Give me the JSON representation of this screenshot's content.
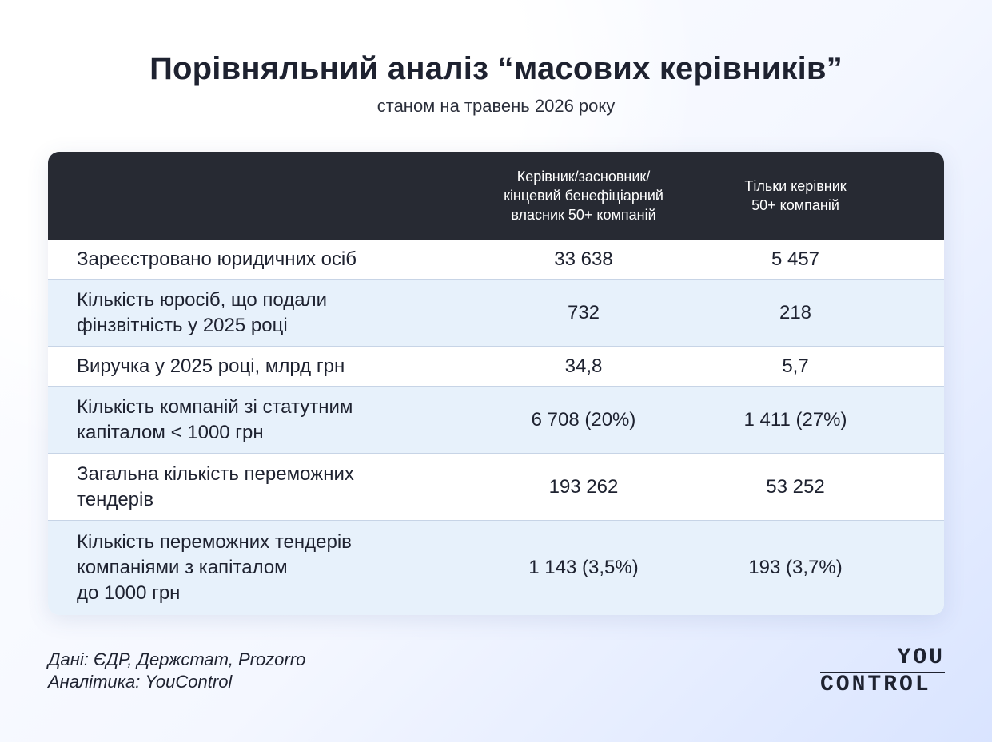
{
  "header": {
    "title": "Порівняльний аналіз “масових керівників”",
    "subtitle": "станом на травень 2026 року"
  },
  "table": {
    "columns": [
      "",
      "Керівник/засновник/\nкінцевий бенефіціарний\nвласник 50+ компаній",
      "Тільки керівник\n50+ компаній"
    ],
    "rows": [
      {
        "label": "Зареєстровано юридичних осіб",
        "v1": "33 638",
        "v2": "5 457"
      },
      {
        "label": "Кількість юросіб, що подали\nфінзвітність у 2025 році",
        "v1": "732",
        "v2": "218"
      },
      {
        "label": "Виручка у 2025 році, млрд грн",
        "v1": "34,8",
        "v2": "5,7"
      },
      {
        "label": "Кількість компаній зі статутним\nкапіталом < 1000 грн",
        "v1": "6 708 (20%)",
        "v2": "1 411 (27%)"
      },
      {
        "label": "Загальна кількість переможних\nтендерів",
        "v1": "193 262",
        "v2": "53 252"
      },
      {
        "label": "Кількість переможних тендерів\nкомпаніями з капіталом\nдо 1000 грн",
        "v1": "1 143 (3,5%)",
        "v2": "193 (3,7%)"
      }
    ]
  },
  "footer": {
    "source_line1": "Дані: ЄДР, Держстат, Prozorro",
    "source_line2": "Аналітика: YouControl"
  },
  "logo": {
    "top": "YOU",
    "bottom": "CONTROL"
  },
  "colors": {
    "header_bg": "#272a33",
    "row_alt": "#e7f1fb",
    "text": "#1e2230"
  }
}
